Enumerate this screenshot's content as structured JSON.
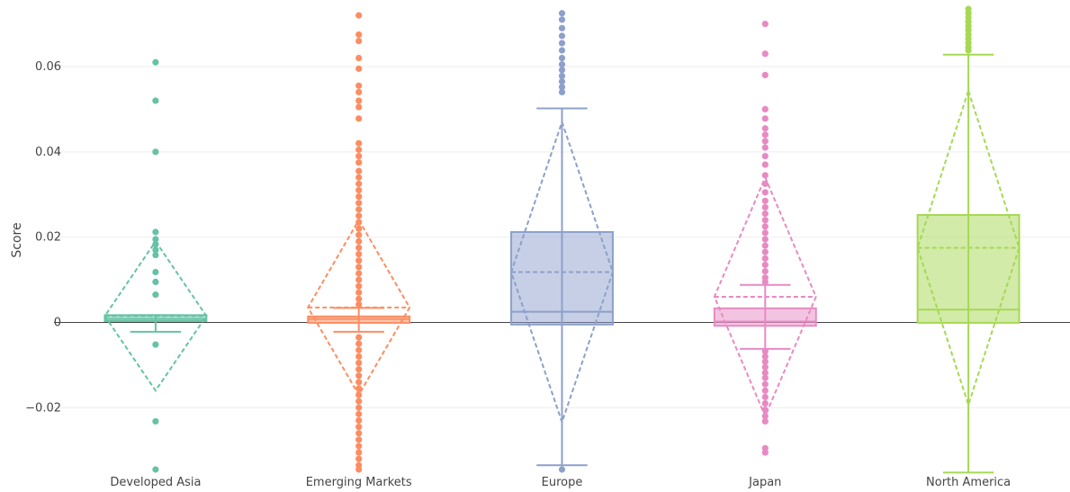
{
  "chart_data": {
    "type": "box",
    "ylabel": "Score",
    "ylim": [
      -0.0345,
      0.0735
    ],
    "yticks": [
      -0.02,
      0,
      0.02,
      0.04,
      0.06
    ],
    "ytick_labels": [
      "−0.02",
      "0",
      "0.02",
      "0.04",
      "0.06"
    ],
    "grid": true,
    "zero_line": true,
    "box_mean": "sd",
    "categories": [
      "Developed Asia",
      "Emerging Markets",
      "Europe",
      "Japan",
      "North America"
    ],
    "series": [
      {
        "color": "#66c2a5",
        "q1": 0.0003,
        "median": 0.0008,
        "q3": 0.0017,
        "whisker_low": -0.0022,
        "whisker_high": 0.0017,
        "mean": 0.0015,
        "sd": 0.0175,
        "outliers": [
          0.061,
          0.052,
          0.04,
          0.0212,
          0.0195,
          0.0183,
          0.017,
          0.0158,
          0.0118,
          0.0095,
          0.0065,
          -0.0052,
          -0.0232,
          -0.0345
        ]
      },
      {
        "color": "#fc8d62",
        "q1": -0.0001,
        "median": 0.0008,
        "q3": 0.0014,
        "whisker_low": -0.0022,
        "whisker_high": 0.0034,
        "mean": 0.0035,
        "sd": 0.0205,
        "outliers": [
          0.072,
          0.0675,
          0.066,
          0.062,
          0.0595,
          0.0555,
          0.054,
          0.052,
          0.0505,
          0.0478,
          0.042,
          0.0405,
          0.039,
          0.0375,
          0.0355,
          0.034,
          0.0325,
          0.031,
          0.0295,
          0.028,
          0.0265,
          0.025,
          0.0235,
          0.022,
          0.0205,
          0.019,
          0.0175,
          0.016,
          0.0145,
          0.013,
          0.0115,
          0.01,
          0.0085,
          0.007,
          0.0055,
          0.0042,
          -0.0035,
          -0.005,
          -0.0065,
          -0.008,
          -0.0095,
          -0.011,
          -0.0125,
          -0.014,
          -0.0155,
          -0.017,
          -0.0185,
          -0.02,
          -0.0215,
          -0.023,
          -0.0245,
          -0.026,
          -0.0275,
          -0.029,
          -0.0305,
          -0.032,
          -0.0335,
          -0.0345
        ]
      },
      {
        "color": "#8da0cb",
        "q1": -0.0005,
        "median": 0.0025,
        "q3": 0.0212,
        "whisker_low": -0.0335,
        "whisker_high": 0.0502,
        "mean": 0.0118,
        "sd": 0.0352,
        "outliers": [
          0.0725,
          0.071,
          0.069,
          0.0672,
          0.0655,
          0.0638,
          0.062,
          0.0605,
          0.0592,
          0.0578,
          0.0565,
          0.0552,
          0.054,
          -0.0345
        ]
      },
      {
        "color": "#e78ac3",
        "q1": -0.0008,
        "median": 0.0002,
        "q3": 0.0033,
        "whisker_low": -0.0062,
        "whisker_high": 0.0088,
        "mean": 0.006,
        "sd": 0.028,
        "outliers": [
          0.07,
          0.063,
          0.058,
          0.05,
          0.0478,
          0.0455,
          0.044,
          0.0425,
          0.041,
          0.039,
          0.037,
          0.0345,
          0.0325,
          0.0305,
          0.0285,
          0.027,
          0.0255,
          0.024,
          0.0225,
          0.021,
          0.0195,
          0.018,
          0.0165,
          0.015,
          0.0135,
          0.012,
          0.0105,
          0.0095,
          -0.0068,
          -0.008,
          -0.0092,
          -0.0105,
          -0.0118,
          -0.013,
          -0.0145,
          -0.016,
          -0.0175,
          -0.019,
          -0.0205,
          -0.022,
          -0.0232,
          -0.0295,
          -0.0305
        ]
      },
      {
        "color": "#a6d854",
        "q1": -0.0001,
        "median": 0.003,
        "q3": 0.0252,
        "whisker_low": -0.0352,
        "whisker_high": 0.0628,
        "mean": 0.0175,
        "sd": 0.0368,
        "outliers": [
          0.0735,
          0.0725,
          0.0715,
          0.0705,
          0.0695,
          0.0685,
          0.0675,
          0.0665,
          0.0655,
          0.0645,
          0.0638
        ]
      }
    ]
  }
}
